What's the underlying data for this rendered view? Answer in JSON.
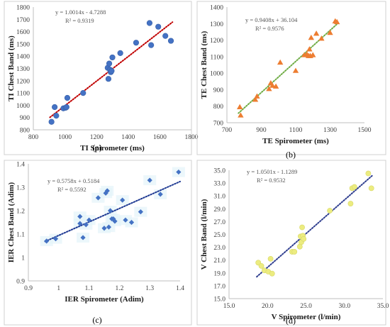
{
  "chart_data": [
    {
      "type": "scatter",
      "panel": "(a)",
      "xlabel": "TI Spirometer (ms)",
      "ylabel": "TI Chest Band (ms)",
      "xlim": [
        800,
        1800
      ],
      "ylim": [
        800,
        1800
      ],
      "xticks": [
        800,
        1000,
        1200,
        1400,
        1600,
        1800
      ],
      "yticks": [
        800,
        900,
        1000,
        1100,
        1200,
        1300,
        1400,
        1500,
        1600,
        1700,
        1800
      ],
      "equation": "y = 1.0014x - 4.7288",
      "r2": "R² = 0.9319",
      "marker": "circle",
      "marker_color": "#4472c4",
      "trend_color": "#c00000",
      "trend": {
        "slope": 1.0014,
        "intercept": -4.7288
      },
      "grid": false,
      "x": [
        915,
        935,
        945,
        990,
        1005,
        1010,
        1015,
        1115,
        1270,
        1275,
        1280,
        1285,
        1290,
        1295,
        1300,
        1350,
        1450,
        1535,
        1545,
        1590,
        1635,
        1670
      ],
      "y": [
        865,
        985,
        915,
        975,
        980,
        985,
        1060,
        1100,
        1305,
        1215,
        1340,
        1290,
        1270,
        1280,
        1390,
        1425,
        1510,
        1670,
        1490,
        1640,
        1565,
        1525
      ]
    },
    {
      "type": "scatter",
      "panel": "(b)",
      "xlabel": "TE Spirometer (ms)",
      "ylabel": "TE Chest Band (ms)",
      "xlim": [
        700,
        1500
      ],
      "ylim": [
        700,
        1400
      ],
      "xticks": [
        700,
        900,
        1100,
        1300,
        1500
      ],
      "yticks": [
        700,
        800,
        900,
        1000,
        1100,
        1200,
        1300,
        1400
      ],
      "equation": "y = 0.9408x + 36.104",
      "r2": "R² = 0.9576",
      "marker": "triangle",
      "marker_color": "#ed7d31",
      "trend_color": "#70ad47",
      "trend": {
        "slope": 0.9408,
        "intercept": 36.104
      },
      "grid": false,
      "x": [
        775,
        780,
        865,
        875,
        945,
        955,
        965,
        985,
        1010,
        1100,
        1150,
        1165,
        1175,
        1180,
        1185,
        1190,
        1200,
        1220,
        1250,
        1300,
        1330,
        1340
      ],
      "y": [
        795,
        745,
        840,
        860,
        905,
        940,
        925,
        920,
        1065,
        1015,
        1110,
        1115,
        1105,
        1145,
        1105,
        1215,
        1110,
        1240,
        1210,
        1245,
        1315,
        1310
      ]
    },
    {
      "type": "scatter",
      "panel": "(c)",
      "xlabel": "IER Spirometer (Adim)",
      "ylabel": "IER Chest Band (Adim)",
      "xlim": [
        0.9,
        1.4
      ],
      "ylim": [
        0.9,
        1.4
      ],
      "xticks": [
        "0.9",
        "1",
        "1.1",
        "1.2",
        "1.3",
        "1.4"
      ],
      "yticks": [
        "0.9",
        "1",
        "1.1",
        "1.2",
        "1.3",
        "1.4"
      ],
      "equation": "y = 0.5758x + 0.5184",
      "r2": "R² = 0.5592",
      "marker": "diamond",
      "marker_color": "#4472c4",
      "trend_color": "#1f3a93",
      "trend": {
        "slope": 0.5758,
        "intercept": 0.5184
      },
      "grid": false,
      "x": [
        0.96,
        0.99,
        1.07,
        1.07,
        1.08,
        1.09,
        1.1,
        1.13,
        1.15,
        1.155,
        1.16,
        1.165,
        1.17,
        1.175,
        1.18,
        1.185,
        1.21,
        1.22,
        1.24,
        1.27,
        1.3,
        1.335,
        1.395
      ],
      "y": [
        1.07,
        1.08,
        1.145,
        1.175,
        1.085,
        1.14,
        1.16,
        1.255,
        1.125,
        1.275,
        1.285,
        1.13,
        1.2,
        1.165,
        1.165,
        1.155,
        1.245,
        1.16,
        1.15,
        1.195,
        1.33,
        1.27,
        1.365
      ]
    },
    {
      "type": "scatter",
      "panel": "(d)",
      "xlabel": "V Spirometer (l/min)",
      "ylabel": "V Chest Band (l/min)",
      "xlim": [
        15,
        35
      ],
      "ylim": [
        15,
        35
      ],
      "xticks": [
        "15.0",
        "20.0",
        "25.0",
        "30.0",
        "35.0"
      ],
      "yticks": [
        "15.0",
        "17.0",
        "19.0",
        "21.0",
        "23.0",
        "25.0",
        "27.0",
        "29.0",
        "31.0",
        "33.0",
        "35.0"
      ],
      "equation": "y = 1.0501x - 1.1289",
      "r2": "R² = 0.9532",
      "marker": "circle",
      "marker_color": "#ecec80",
      "trend_color": "#2f3e8f",
      "trend": {
        "slope": 1.0501,
        "intercept": -1.1289
      },
      "grid": false,
      "x": [
        18.8,
        19.2,
        19.6,
        20.1,
        20.4,
        20.6,
        23.2,
        23.5,
        24.2,
        24.3,
        24.4,
        24.5,
        24.6,
        24.7,
        28.1,
        30.8,
        31.0,
        31.3,
        33.1,
        33.5
      ],
      "y": [
        20.6,
        20.1,
        19.4,
        19.2,
        21.2,
        18.9,
        22.3,
        22.3,
        23.1,
        24.7,
        23.8,
        26.1,
        24.8,
        24.3,
        28.7,
        29.8,
        32.2,
        32.4,
        34.5,
        32.2
      ]
    }
  ]
}
